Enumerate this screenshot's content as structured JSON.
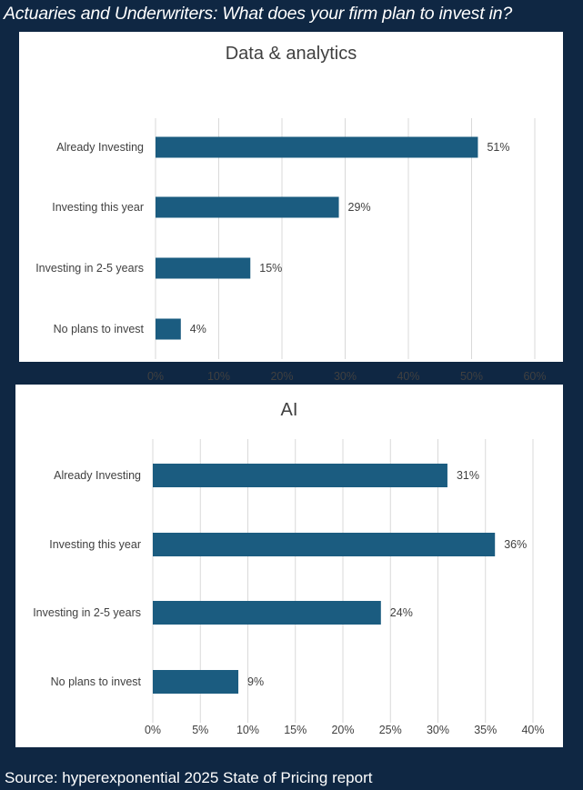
{
  "header": {
    "title": "Actuaries and Underwriters: What does your firm plan to invest in?"
  },
  "footer": {
    "source": "Source: hyperexponential 2025 State of Pricing report"
  },
  "colors": {
    "background": "#0f2743",
    "bar": "#1b5c80",
    "gridline": "#d9d9d9",
    "text": "#404040"
  },
  "chart_data": [
    {
      "type": "bar",
      "orientation": "horizontal",
      "title": "Data & analytics",
      "categories": [
        "Already Investing",
        "Investing this year",
        "Investing in 2-5 years",
        "No plans to invest"
      ],
      "values": [
        51,
        29,
        15,
        4
      ],
      "value_labels": [
        "51%",
        "29%",
        "15%",
        "4%"
      ],
      "xlim": [
        0,
        60
      ],
      "xticks": [
        0,
        10,
        20,
        30,
        40,
        50,
        60
      ],
      "xtick_labels": [
        "0%",
        "10%",
        "20%",
        "30%",
        "40%",
        "50%",
        "60%"
      ],
      "grid": true,
      "legend": "none"
    },
    {
      "type": "bar",
      "orientation": "horizontal",
      "title": "AI",
      "categories": [
        "Already Investing",
        "Investing this year",
        "Investing in 2-5 years",
        "No plans to invest"
      ],
      "values": [
        31,
        36,
        24,
        9
      ],
      "value_labels": [
        "31%",
        "36%",
        "24%",
        "9%"
      ],
      "xlim": [
        0,
        40
      ],
      "xticks": [
        0,
        5,
        10,
        15,
        20,
        25,
        30,
        35,
        40
      ],
      "xtick_labels": [
        "0%",
        "5%",
        "10%",
        "15%",
        "20%",
        "25%",
        "30%",
        "35%",
        "40%"
      ],
      "grid": true,
      "legend": "none"
    }
  ]
}
